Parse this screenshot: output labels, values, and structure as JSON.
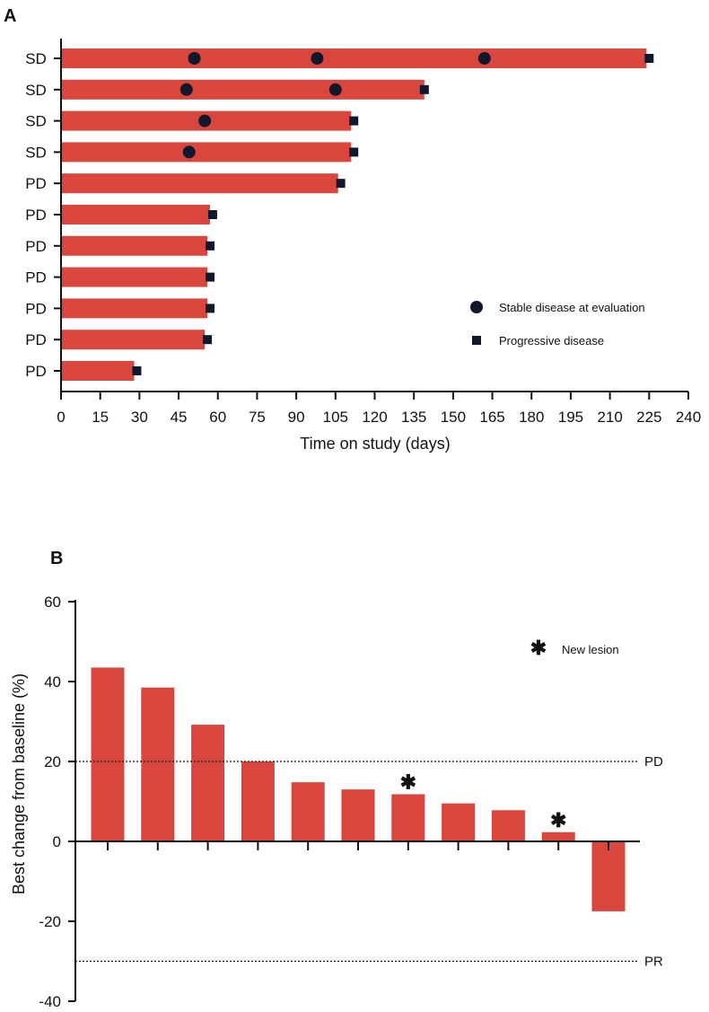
{
  "colors": {
    "bar": "#d9463e",
    "marker": "#13172b",
    "axis": "#111111"
  },
  "chart_data": [
    {
      "panel": "A",
      "type": "bar",
      "orientation": "horizontal",
      "xlabel": "Time on study (days)",
      "xlim": [
        0,
        240
      ],
      "xticks": [
        0,
        15,
        30,
        45,
        60,
        75,
        90,
        105,
        120,
        135,
        150,
        165,
        180,
        195,
        210,
        225,
        240
      ],
      "categories": [
        "SD",
        "SD",
        "SD",
        "SD",
        "PD",
        "PD",
        "PD",
        "PD",
        "PD",
        "PD",
        "PD"
      ],
      "values": [
        224,
        139,
        111,
        111,
        106,
        57,
        56,
        56,
        56,
        55,
        28
      ],
      "stable_disease_days": [
        [
          51,
          98,
          162
        ],
        [
          48,
          105
        ],
        [
          55
        ],
        [
          49
        ],
        [],
        [],
        [],
        [],
        [],
        [],
        []
      ],
      "progressive_disease_days": [
        225,
        139,
        112,
        112,
        107,
        58,
        57,
        57,
        57,
        56,
        29
      ],
      "legend": [
        {
          "marker": "circle",
          "label": "Stable disease at evaluation"
        },
        {
          "marker": "square",
          "label": "Progressive disease"
        }
      ]
    },
    {
      "panel": "B",
      "type": "bar",
      "ylabel": "Best change from baseline (%)",
      "ylim": [
        -40,
        60
      ],
      "yticks": [
        -40,
        -20,
        0,
        20,
        40,
        60
      ],
      "values": [
        43.5,
        38.5,
        29.2,
        20,
        14.8,
        13,
        11.8,
        9.5,
        7.8,
        2.3,
        -17.5
      ],
      "new_lesion_bars": [
        6,
        9
      ],
      "reference_lines": [
        {
          "label": "PD",
          "value": 20
        },
        {
          "label": "PR",
          "value": -30
        }
      ],
      "legend": [
        {
          "marker": "asterisk",
          "label": "New lesion"
        }
      ]
    }
  ]
}
